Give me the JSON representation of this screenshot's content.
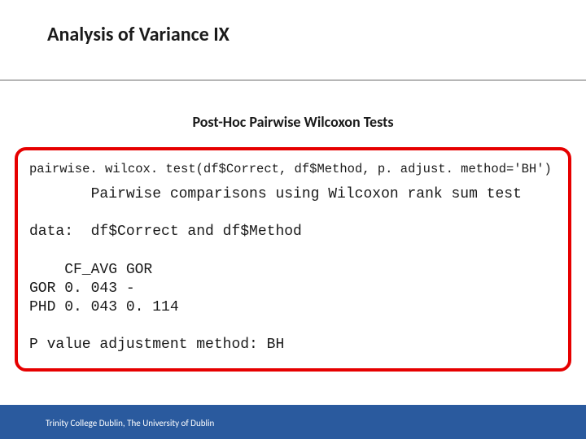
{
  "title": "Analysis of Variance IX",
  "subtitle": "Post-Hoc Pairwise Wilcoxon Tests",
  "code": {
    "command": "pairwise. wilcox. test(df$Correct, df$Method, p. adjust. method='BH')",
    "header": "       Pairwise comparisons using Wilcoxon rank sum test",
    "data_line": "data:  df$Correct and df$Method",
    "table_header": "    CF_AVG GOR",
    "table_row1": "GOR 0. 043 -",
    "table_row2": "PHD 0. 043 0. 114",
    "adjustment": "P value adjustment method: BH"
  },
  "footer": "Trinity College Dublin, The University of Dublin",
  "style": {
    "slide_width": 720,
    "slide_height": 540,
    "title_fontsize": 24,
    "title_fontweight": 700,
    "title_color": "#1a1a1a",
    "subtitle_fontsize": 18,
    "subtitle_fontweight": 700,
    "subtitle_color": "#1a1a1a",
    "hr_color": "#666666",
    "codebox_border_color": "#e60000",
    "codebox_border_width": 4,
    "codebox_border_radius": 14,
    "code_font": "Courier New",
    "code_cmd_fontsize": 15.5,
    "code_body_fontsize": 18,
    "code_text_color": "#1a1a1a",
    "footer_bg": "#2a5a9e",
    "footer_text_color": "#ffffff",
    "footer_fontsize": 11,
    "background": "#ffffff"
  }
}
